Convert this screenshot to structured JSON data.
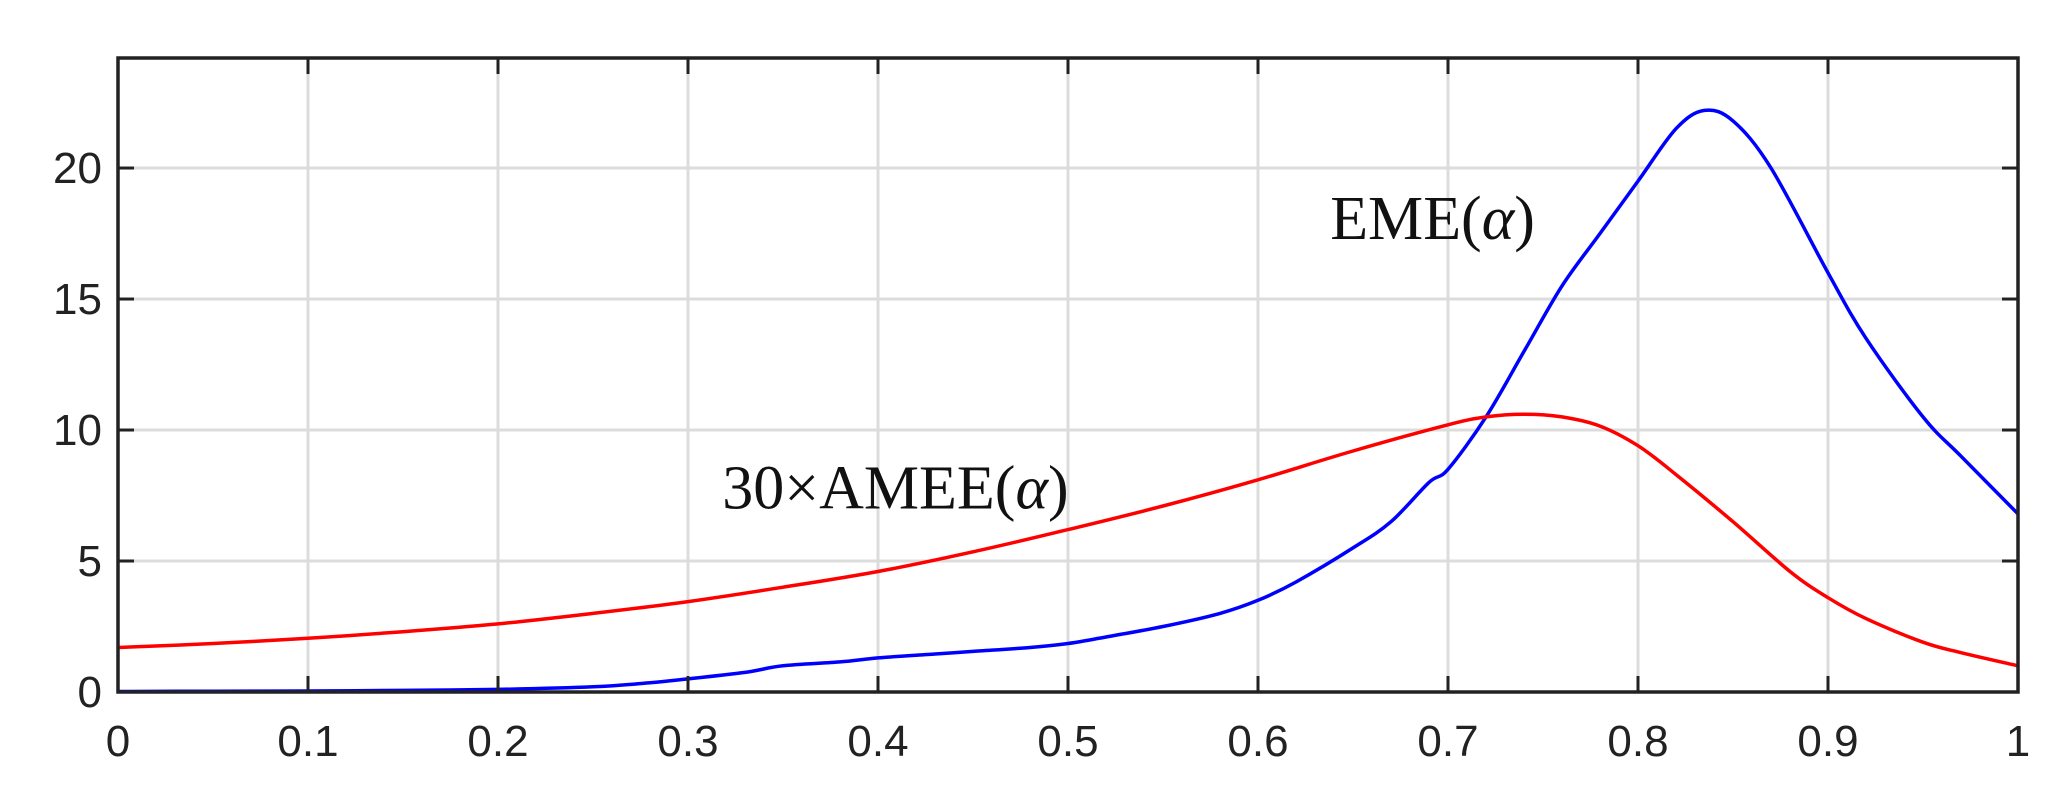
{
  "chart_data": {
    "type": "line",
    "title": "",
    "xlabel": "",
    "ylabel": "",
    "xlim": [
      0,
      1
    ],
    "ylim": [
      0,
      24.2
    ],
    "grid": true,
    "x_ticks": [
      0,
      0.1,
      0.2,
      0.3,
      0.4,
      0.5,
      0.6,
      0.7,
      0.8,
      0.9,
      1
    ],
    "x_tick_labels": [
      "0",
      "0.1",
      "0.2",
      "0.3",
      "0.4",
      "0.5",
      "0.6",
      "0.7",
      "0.8",
      "0.9",
      "1"
    ],
    "y_ticks": [
      0,
      5,
      10,
      15,
      20
    ],
    "y_tick_labels": [
      "0",
      "5",
      "10",
      "15",
      "20"
    ],
    "series": [
      {
        "id": "eme",
        "color": "#0000ff",
        "x": [
          0,
          0.05,
          0.1,
          0.15,
          0.2,
          0.25,
          0.28,
          0.3,
          0.33,
          0.35,
          0.38,
          0.4,
          0.43,
          0.45,
          0.48,
          0.5,
          0.52,
          0.55,
          0.58,
          0.6,
          0.62,
          0.65,
          0.67,
          0.69,
          0.7,
          0.72,
          0.74,
          0.76,
          0.78,
          0.8,
          0.82,
          0.835,
          0.85,
          0.87,
          0.9,
          0.92,
          0.95,
          0.97,
          1.0
        ],
        "y": [
          0.02,
          0.03,
          0.04,
          0.06,
          0.1,
          0.2,
          0.35,
          0.5,
          0.75,
          1.0,
          1.15,
          1.3,
          1.45,
          1.55,
          1.7,
          1.85,
          2.1,
          2.5,
          3.0,
          3.5,
          4.2,
          5.5,
          6.5,
          8.0,
          8.5,
          10.5,
          13.0,
          15.5,
          17.5,
          19.5,
          21.5,
          22.2,
          21.8,
          20.0,
          16.0,
          13.5,
          10.5,
          9.0,
          6.8
        ]
      },
      {
        "id": "amee",
        "color": "#ff0000",
        "x": [
          0,
          0.05,
          0.1,
          0.15,
          0.2,
          0.25,
          0.3,
          0.35,
          0.4,
          0.45,
          0.5,
          0.55,
          0.6,
          0.65,
          0.7,
          0.72,
          0.74,
          0.76,
          0.78,
          0.8,
          0.82,
          0.85,
          0.88,
          0.9,
          0.92,
          0.95,
          0.97,
          1.0
        ],
        "y": [
          1.7,
          1.85,
          2.05,
          2.3,
          2.6,
          3.0,
          3.45,
          4.0,
          4.6,
          5.35,
          6.2,
          7.1,
          8.1,
          9.2,
          10.2,
          10.5,
          10.6,
          10.5,
          10.15,
          9.4,
          8.3,
          6.5,
          4.6,
          3.6,
          2.8,
          1.9,
          1.5,
          1.0
        ]
      }
    ],
    "annotations": [
      {
        "for": "eme",
        "text_prefix": "EME(",
        "text_var": "α",
        "text_suffix": ")",
        "x": 0.638,
        "y": 17.3
      },
      {
        "for": "amee",
        "text_prefix": "30×AMEE(",
        "text_var": "α",
        "text_suffix": ")",
        "x": 0.318,
        "y": 7.0
      }
    ]
  }
}
